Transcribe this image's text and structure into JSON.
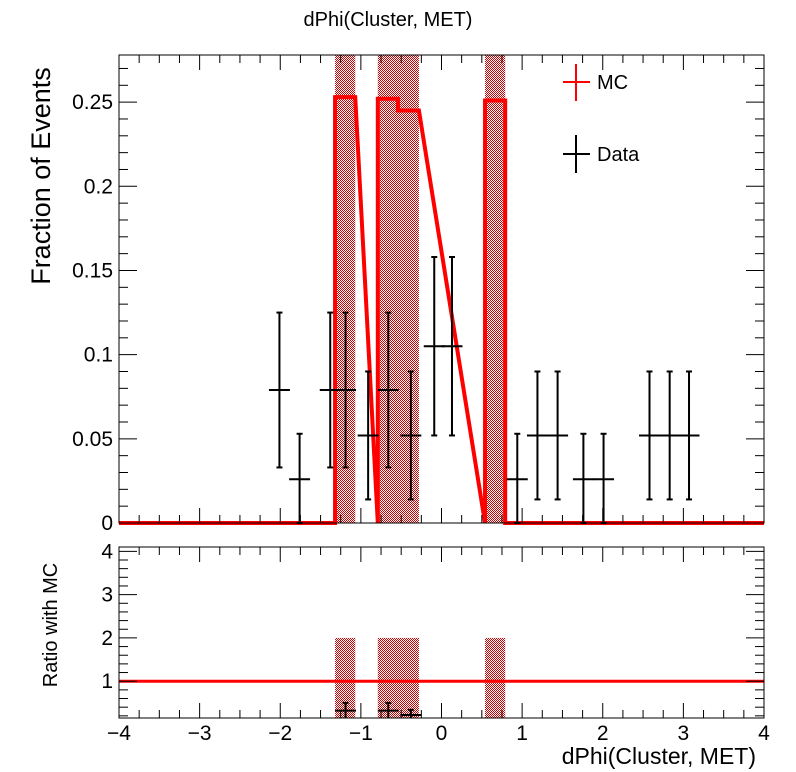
{
  "title": "dPhi(Cluster, MET)",
  "colors": {
    "mc": "#ff0000",
    "data": "#000000",
    "band": "#cc0000"
  },
  "chart_data": [
    {
      "type": "histogram",
      "title": "dPhi(Cluster, MET)",
      "ylabel": "Fraction of Events",
      "xlabel": "",
      "xlim": [
        -4,
        4
      ],
      "ylim": [
        0,
        0.278
      ],
      "yticks": [
        0,
        0.05,
        0.1,
        0.15,
        0.2,
        0.25
      ],
      "ytick_labels": [
        "0",
        "0.05",
        "0.1",
        "0.15",
        "0.2",
        "0.25"
      ],
      "legend": {
        "placement": "top-right",
        "entries": [
          "MC",
          "Data"
        ]
      },
      "mc_bins": [
        {
          "lo": -1.32,
          "hi": -1.07,
          "value": 0.253
        },
        {
          "lo": -0.79,
          "hi": -0.54,
          "value": 0.252
        },
        {
          "lo": -0.54,
          "hi": -0.28,
          "value": 0.245
        },
        {
          "lo": 0.54,
          "hi": 0.79,
          "value": 0.251
        }
      ],
      "mc_uncertainty_bands": [
        {
          "lo": -1.32,
          "hi": -1.07
        },
        {
          "lo": -0.79,
          "hi": -0.28
        },
        {
          "lo": 0.54,
          "hi": 0.79
        }
      ],
      "data_points": [
        {
          "x": -2.01,
          "xerr": 0.13,
          "y": 0.079,
          "yerr": 0.046
        },
        {
          "x": -1.76,
          "xerr": 0.13,
          "y": 0.026,
          "yerr": 0.027
        },
        {
          "x": -1.38,
          "xerr": 0.13,
          "y": 0.079,
          "yerr": 0.046
        },
        {
          "x": -1.19,
          "xerr": 0.13,
          "y": 0.079,
          "yerr": 0.046
        },
        {
          "x": -0.91,
          "xerr": 0.13,
          "y": 0.052,
          "yerr": 0.038
        },
        {
          "x": -0.66,
          "xerr": 0.13,
          "y": 0.079,
          "yerr": 0.046
        },
        {
          "x": -0.38,
          "xerr": 0.13,
          "y": 0.052,
          "yerr": 0.038
        },
        {
          "x": -0.09,
          "xerr": 0.13,
          "y": 0.105,
          "yerr": 0.053
        },
        {
          "x": 0.13,
          "xerr": 0.13,
          "y": 0.105,
          "yerr": 0.053
        },
        {
          "x": 0.94,
          "xerr": 0.13,
          "y": 0.026,
          "yerr": 0.027
        },
        {
          "x": 1.19,
          "xerr": 0.13,
          "y": 0.052,
          "yerr": 0.038
        },
        {
          "x": 1.44,
          "xerr": 0.13,
          "y": 0.052,
          "yerr": 0.038
        },
        {
          "x": 1.76,
          "xerr": 0.13,
          "y": 0.026,
          "yerr": 0.027
        },
        {
          "x": 2.01,
          "xerr": 0.13,
          "y": 0.026,
          "yerr": 0.027
        },
        {
          "x": 2.58,
          "xerr": 0.13,
          "y": 0.052,
          "yerr": 0.038
        },
        {
          "x": 2.83,
          "xerr": 0.13,
          "y": 0.052,
          "yerr": 0.038
        },
        {
          "x": 3.07,
          "xerr": 0.13,
          "y": 0.052,
          "yerr": 0.038
        }
      ]
    },
    {
      "type": "ratio",
      "title": "",
      "ylabel": "Ratio with MC",
      "xlabel": "dPhi(Cluster, MET)",
      "xlim": [
        -4,
        4
      ],
      "ylim": [
        0.15,
        4.1
      ],
      "yticks": [
        1,
        2,
        3,
        4
      ],
      "ytick_labels": [
        "1",
        "2",
        "3",
        "4"
      ],
      "xticks": [
        -4,
        -3,
        -2,
        -1,
        0,
        1,
        2,
        3,
        4
      ],
      "xtick_labels": [
        "−4",
        "−3",
        "−2",
        "−1",
        "0",
        "1",
        "2",
        "3",
        "4"
      ],
      "reference_line": 1,
      "band_range": [
        0.15,
        2.0
      ],
      "ratio_points": [
        {
          "x": -1.19,
          "xerr": 0.13,
          "y": 0.32,
          "yerr": 0.18
        },
        {
          "x": -0.66,
          "xerr": 0.13,
          "y": 0.32,
          "yerr": 0.18
        },
        {
          "x": -0.38,
          "xerr": 0.13,
          "y": 0.22,
          "yerr": 0.12
        }
      ]
    }
  ]
}
